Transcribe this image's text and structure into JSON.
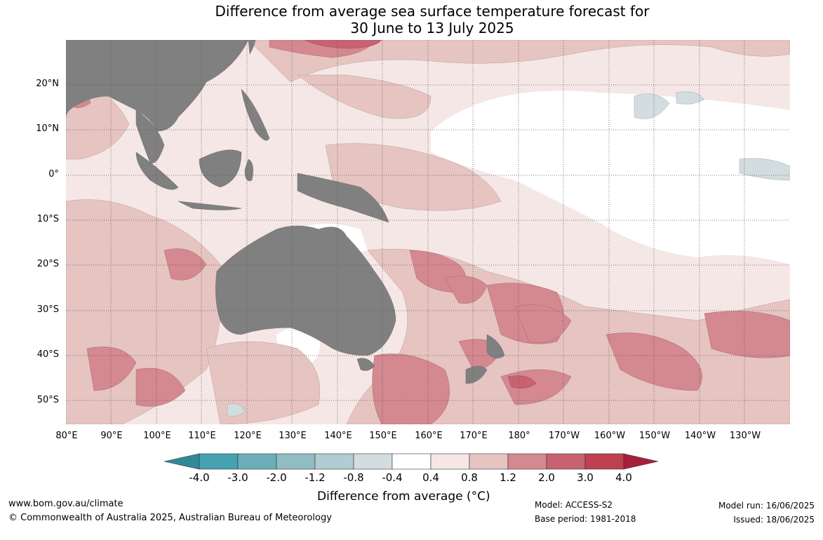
{
  "title": {
    "line1": "Difference from average sea surface temperature forecast for",
    "line2": "30 June to 13 July 2025"
  },
  "map": {
    "lat_labels": [
      "20°N",
      "10°N",
      "0°",
      "10°S",
      "20°S",
      "30°S",
      "40°S",
      "50°S"
    ],
    "lon_labels": [
      "80°E",
      "90°E",
      "100°E",
      "110°E",
      "120°E",
      "130°E",
      "140°E",
      "150°E",
      "160°E",
      "170°E",
      "180°",
      "170°W",
      "160°W",
      "150°W",
      "140°W",
      "130°W"
    ],
    "land_color": "#808080",
    "gridlines": "dotted"
  },
  "colorbar": {
    "labels": [
      "-4.0",
      "-3.0",
      "-2.0",
      "-1.2",
      "-0.8",
      "-0.4",
      "0.4",
      "0.8",
      "1.2",
      "2.0",
      "3.0",
      "4.0"
    ],
    "colors": [
      "#2f8a98",
      "#46a1b1",
      "#6baeba",
      "#90bcc4",
      "#b2cdd2",
      "#d3dcde",
      "#ffffff",
      "#f5e7e6",
      "#e6c4c1",
      "#d4888f",
      "#c86270",
      "#bf4050",
      "#a5203a"
    ],
    "title": "Difference from average (°C)"
  },
  "footer": {
    "website": "www.bom.gov.au/climate",
    "copyright": "© Commonwealth of Australia 2025, Australian Bureau of Meteorology",
    "model": "Model: ACCESS-S2",
    "base_period": "Base period: 1981-2018",
    "model_run": "Model run: 16/06/2025",
    "issued": "Issued: 18/06/2025"
  }
}
